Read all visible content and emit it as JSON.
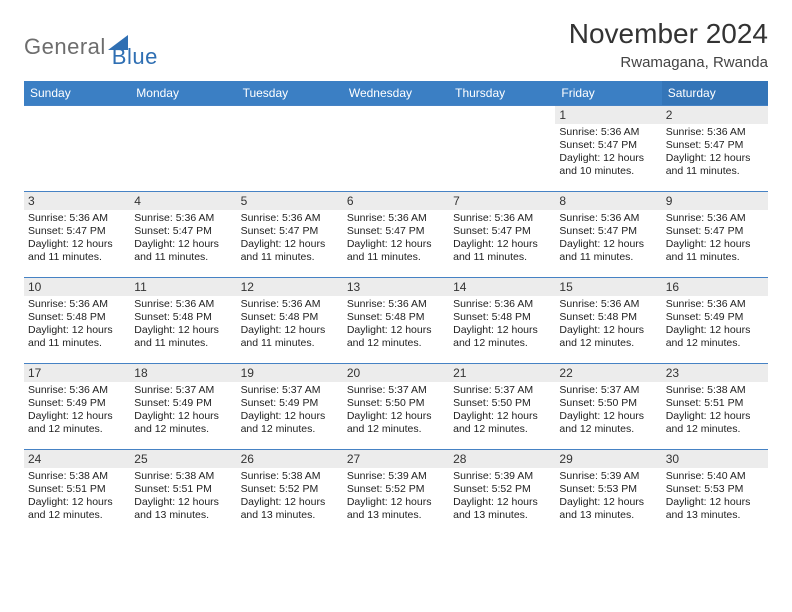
{
  "brand": {
    "word1": "General",
    "word2": "Blue"
  },
  "title": "November 2024",
  "location": "Rwamagana, Rwanda",
  "colors": {
    "header_bg": "#3b7fc4",
    "header_sat_bg": "#3475b8",
    "row_border": "#4682c4",
    "daynum_bg": "#ececec",
    "logo_grey": "#6d6d6d",
    "logo_blue": "#2f6fb3"
  },
  "days_of_week": [
    "Sunday",
    "Monday",
    "Tuesday",
    "Wednesday",
    "Thursday",
    "Friday",
    "Saturday"
  ],
  "weeks": [
    [
      {
        "n": "",
        "lines": []
      },
      {
        "n": "",
        "lines": []
      },
      {
        "n": "",
        "lines": []
      },
      {
        "n": "",
        "lines": []
      },
      {
        "n": "",
        "lines": []
      },
      {
        "n": "1",
        "lines": [
          "Sunrise: 5:36 AM",
          "Sunset: 5:47 PM",
          "Daylight: 12 hours and 10 minutes."
        ]
      },
      {
        "n": "2",
        "lines": [
          "Sunrise: 5:36 AM",
          "Sunset: 5:47 PM",
          "Daylight: 12 hours and 11 minutes."
        ]
      }
    ],
    [
      {
        "n": "3",
        "lines": [
          "Sunrise: 5:36 AM",
          "Sunset: 5:47 PM",
          "Daylight: 12 hours and 11 minutes."
        ]
      },
      {
        "n": "4",
        "lines": [
          "Sunrise: 5:36 AM",
          "Sunset: 5:47 PM",
          "Daylight: 12 hours and 11 minutes."
        ]
      },
      {
        "n": "5",
        "lines": [
          "Sunrise: 5:36 AM",
          "Sunset: 5:47 PM",
          "Daylight: 12 hours and 11 minutes."
        ]
      },
      {
        "n": "6",
        "lines": [
          "Sunrise: 5:36 AM",
          "Sunset: 5:47 PM",
          "Daylight: 12 hours and 11 minutes."
        ]
      },
      {
        "n": "7",
        "lines": [
          "Sunrise: 5:36 AM",
          "Sunset: 5:47 PM",
          "Daylight: 12 hours and 11 minutes."
        ]
      },
      {
        "n": "8",
        "lines": [
          "Sunrise: 5:36 AM",
          "Sunset: 5:47 PM",
          "Daylight: 12 hours and 11 minutes."
        ]
      },
      {
        "n": "9",
        "lines": [
          "Sunrise: 5:36 AM",
          "Sunset: 5:47 PM",
          "Daylight: 12 hours and 11 minutes."
        ]
      }
    ],
    [
      {
        "n": "10",
        "lines": [
          "Sunrise: 5:36 AM",
          "Sunset: 5:48 PM",
          "Daylight: 12 hours and 11 minutes."
        ]
      },
      {
        "n": "11",
        "lines": [
          "Sunrise: 5:36 AM",
          "Sunset: 5:48 PM",
          "Daylight: 12 hours and 11 minutes."
        ]
      },
      {
        "n": "12",
        "lines": [
          "Sunrise: 5:36 AM",
          "Sunset: 5:48 PM",
          "Daylight: 12 hours and 11 minutes."
        ]
      },
      {
        "n": "13",
        "lines": [
          "Sunrise: 5:36 AM",
          "Sunset: 5:48 PM",
          "Daylight: 12 hours and 12 minutes."
        ]
      },
      {
        "n": "14",
        "lines": [
          "Sunrise: 5:36 AM",
          "Sunset: 5:48 PM",
          "Daylight: 12 hours and 12 minutes."
        ]
      },
      {
        "n": "15",
        "lines": [
          "Sunrise: 5:36 AM",
          "Sunset: 5:48 PM",
          "Daylight: 12 hours and 12 minutes."
        ]
      },
      {
        "n": "16",
        "lines": [
          "Sunrise: 5:36 AM",
          "Sunset: 5:49 PM",
          "Daylight: 12 hours and 12 minutes."
        ]
      }
    ],
    [
      {
        "n": "17",
        "lines": [
          "Sunrise: 5:36 AM",
          "Sunset: 5:49 PM",
          "Daylight: 12 hours and 12 minutes."
        ]
      },
      {
        "n": "18",
        "lines": [
          "Sunrise: 5:37 AM",
          "Sunset: 5:49 PM",
          "Daylight: 12 hours and 12 minutes."
        ]
      },
      {
        "n": "19",
        "lines": [
          "Sunrise: 5:37 AM",
          "Sunset: 5:49 PM",
          "Daylight: 12 hours and 12 minutes."
        ]
      },
      {
        "n": "20",
        "lines": [
          "Sunrise: 5:37 AM",
          "Sunset: 5:50 PM",
          "Daylight: 12 hours and 12 minutes."
        ]
      },
      {
        "n": "21",
        "lines": [
          "Sunrise: 5:37 AM",
          "Sunset: 5:50 PM",
          "Daylight: 12 hours and 12 minutes."
        ]
      },
      {
        "n": "22",
        "lines": [
          "Sunrise: 5:37 AM",
          "Sunset: 5:50 PM",
          "Daylight: 12 hours and 12 minutes."
        ]
      },
      {
        "n": "23",
        "lines": [
          "Sunrise: 5:38 AM",
          "Sunset: 5:51 PM",
          "Daylight: 12 hours and 12 minutes."
        ]
      }
    ],
    [
      {
        "n": "24",
        "lines": [
          "Sunrise: 5:38 AM",
          "Sunset: 5:51 PM",
          "Daylight: 12 hours and 12 minutes."
        ]
      },
      {
        "n": "25",
        "lines": [
          "Sunrise: 5:38 AM",
          "Sunset: 5:51 PM",
          "Daylight: 12 hours and 13 minutes."
        ]
      },
      {
        "n": "26",
        "lines": [
          "Sunrise: 5:38 AM",
          "Sunset: 5:52 PM",
          "Daylight: 12 hours and 13 minutes."
        ]
      },
      {
        "n": "27",
        "lines": [
          "Sunrise: 5:39 AM",
          "Sunset: 5:52 PM",
          "Daylight: 12 hours and 13 minutes."
        ]
      },
      {
        "n": "28",
        "lines": [
          "Sunrise: 5:39 AM",
          "Sunset: 5:52 PM",
          "Daylight: 12 hours and 13 minutes."
        ]
      },
      {
        "n": "29",
        "lines": [
          "Sunrise: 5:39 AM",
          "Sunset: 5:53 PM",
          "Daylight: 12 hours and 13 minutes."
        ]
      },
      {
        "n": "30",
        "lines": [
          "Sunrise: 5:40 AM",
          "Sunset: 5:53 PM",
          "Daylight: 12 hours and 13 minutes."
        ]
      }
    ]
  ]
}
